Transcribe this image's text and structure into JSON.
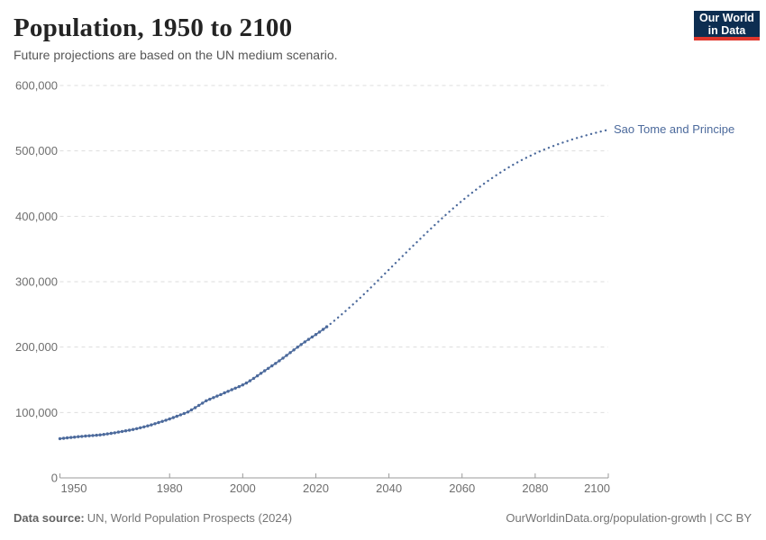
{
  "logo": {
    "line1": "Our World",
    "line2": "in Data",
    "bg": "#0d2e51",
    "accent": "#e0362c"
  },
  "footer": {
    "source_label": "Data source:",
    "source_text": "UN, World Population Prospects (2024)",
    "url": "OurWorldinData.org/population-growth",
    "license": "| CC BY"
  },
  "chart_data": {
    "type": "line",
    "title": "Population, 1950 to 2100",
    "subtitle": "Future projections are based on the UN medium scenario.",
    "entity_label": "Sao Tome and Principe",
    "colors": {
      "line": "#4c6a9c",
      "entity_label": "#4c6a9c",
      "grid": "#dddddd",
      "axis": "#9a9a9a",
      "tick_text": "#6e6e6e"
    },
    "legend_position": "end-of-line",
    "grid": "dashed-horizontal",
    "x_axis": {
      "min": 1950,
      "max": 2100,
      "ticks": [
        {
          "value": 1950,
          "label": "1950"
        },
        {
          "value": 1980,
          "label": "1980"
        },
        {
          "value": 2000,
          "label": "2000"
        },
        {
          "value": 2020,
          "label": "2020"
        },
        {
          "value": 2040,
          "label": "2040"
        },
        {
          "value": 2060,
          "label": "2060"
        },
        {
          "value": 2080,
          "label": "2080"
        },
        {
          "value": 2100,
          "label": "2100"
        }
      ]
    },
    "y_axis": {
      "min": 0,
      "max": 600000,
      "ticks": [
        {
          "value": 0,
          "label": "0"
        },
        {
          "value": 100000,
          "label": "100,000"
        },
        {
          "value": 200000,
          "label": "200,000"
        },
        {
          "value": 300000,
          "label": "300,000"
        },
        {
          "value": 400000,
          "label": "400,000"
        },
        {
          "value": 500000,
          "label": "500,000"
        },
        {
          "value": 600000,
          "label": "600,000"
        }
      ]
    },
    "series": [
      {
        "name": "Sao Tome and Principe (estimates)",
        "style": "solid_dots",
        "x_start": 1950,
        "x_step": 1,
        "values": [
          60000,
          60600,
          61200,
          61800,
          62400,
          63000,
          63500,
          64000,
          64400,
          64800,
          65200,
          65800,
          66500,
          67300,
          68100,
          69000,
          70000,
          71000,
          72000,
          73000,
          74100,
          75300,
          76600,
          78000,
          79500,
          81100,
          82800,
          84600,
          86400,
          88200,
          90200,
          92200,
          94300,
          96400,
          98500,
          100700,
          104000,
          107400,
          110900,
          114400,
          117900,
          120300,
          122700,
          125100,
          127500,
          130000,
          132400,
          134800,
          137200,
          139600,
          142100,
          145000,
          148500,
          152200,
          156000,
          159900,
          163700,
          167500,
          171300,
          175100,
          179000,
          183100,
          187300,
          191500,
          195700,
          199900,
          203900,
          207900,
          211800,
          215500,
          219200,
          223100,
          227000,
          231000
        ]
      },
      {
        "name": "Sao Tome and Principe (UN medium projection)",
        "style": "dotted",
        "x_start": 2024,
        "x_step": 2,
        "values": [
          235500,
          244800,
          254400,
          264300,
          274600,
          285300,
          296300,
          307400,
          318500,
          329600,
          340600,
          351600,
          362500,
          373300,
          384000,
          394300,
          404400,
          414200,
          423700,
          432800,
          441500,
          449800,
          457700,
          465200,
          472300,
          478900,
          485100,
          490800,
          496100,
          501000,
          505500,
          509700,
          513600,
          517300,
          520700,
          523900,
          526900,
          529700,
          532500
        ]
      }
    ]
  }
}
